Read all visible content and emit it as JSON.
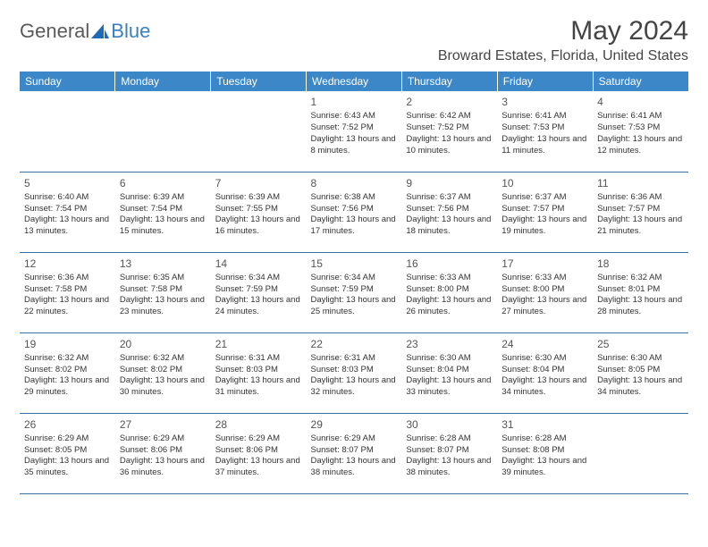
{
  "logo": {
    "text1": "General",
    "text2": "Blue"
  },
  "title": "May 2024",
  "location": "Broward Estates, Florida, United States",
  "colors": {
    "header_bg": "#3b87c8",
    "header_text": "#ffffff",
    "row_border": "#3b6fa0",
    "logo_gray": "#5a5a5a",
    "logo_blue": "#3b7fbf"
  },
  "daynames": [
    "Sunday",
    "Monday",
    "Tuesday",
    "Wednesday",
    "Thursday",
    "Friday",
    "Saturday"
  ],
  "weeks": [
    [
      null,
      null,
      null,
      {
        "n": "1",
        "sr": "6:43 AM",
        "ss": "7:52 PM",
        "dl": "13 hours and 8 minutes."
      },
      {
        "n": "2",
        "sr": "6:42 AM",
        "ss": "7:52 PM",
        "dl": "13 hours and 10 minutes."
      },
      {
        "n": "3",
        "sr": "6:41 AM",
        "ss": "7:53 PM",
        "dl": "13 hours and 11 minutes."
      },
      {
        "n": "4",
        "sr": "6:41 AM",
        "ss": "7:53 PM",
        "dl": "13 hours and 12 minutes."
      }
    ],
    [
      {
        "n": "5",
        "sr": "6:40 AM",
        "ss": "7:54 PM",
        "dl": "13 hours and 13 minutes."
      },
      {
        "n": "6",
        "sr": "6:39 AM",
        "ss": "7:54 PM",
        "dl": "13 hours and 15 minutes."
      },
      {
        "n": "7",
        "sr": "6:39 AM",
        "ss": "7:55 PM",
        "dl": "13 hours and 16 minutes."
      },
      {
        "n": "8",
        "sr": "6:38 AM",
        "ss": "7:56 PM",
        "dl": "13 hours and 17 minutes."
      },
      {
        "n": "9",
        "sr": "6:37 AM",
        "ss": "7:56 PM",
        "dl": "13 hours and 18 minutes."
      },
      {
        "n": "10",
        "sr": "6:37 AM",
        "ss": "7:57 PM",
        "dl": "13 hours and 19 minutes."
      },
      {
        "n": "11",
        "sr": "6:36 AM",
        "ss": "7:57 PM",
        "dl": "13 hours and 21 minutes."
      }
    ],
    [
      {
        "n": "12",
        "sr": "6:36 AM",
        "ss": "7:58 PM",
        "dl": "13 hours and 22 minutes."
      },
      {
        "n": "13",
        "sr": "6:35 AM",
        "ss": "7:58 PM",
        "dl": "13 hours and 23 minutes."
      },
      {
        "n": "14",
        "sr": "6:34 AM",
        "ss": "7:59 PM",
        "dl": "13 hours and 24 minutes."
      },
      {
        "n": "15",
        "sr": "6:34 AM",
        "ss": "7:59 PM",
        "dl": "13 hours and 25 minutes."
      },
      {
        "n": "16",
        "sr": "6:33 AM",
        "ss": "8:00 PM",
        "dl": "13 hours and 26 minutes."
      },
      {
        "n": "17",
        "sr": "6:33 AM",
        "ss": "8:00 PM",
        "dl": "13 hours and 27 minutes."
      },
      {
        "n": "18",
        "sr": "6:32 AM",
        "ss": "8:01 PM",
        "dl": "13 hours and 28 minutes."
      }
    ],
    [
      {
        "n": "19",
        "sr": "6:32 AM",
        "ss": "8:02 PM",
        "dl": "13 hours and 29 minutes."
      },
      {
        "n": "20",
        "sr": "6:32 AM",
        "ss": "8:02 PM",
        "dl": "13 hours and 30 minutes."
      },
      {
        "n": "21",
        "sr": "6:31 AM",
        "ss": "8:03 PM",
        "dl": "13 hours and 31 minutes."
      },
      {
        "n": "22",
        "sr": "6:31 AM",
        "ss": "8:03 PM",
        "dl": "13 hours and 32 minutes."
      },
      {
        "n": "23",
        "sr": "6:30 AM",
        "ss": "8:04 PM",
        "dl": "13 hours and 33 minutes."
      },
      {
        "n": "24",
        "sr": "6:30 AM",
        "ss": "8:04 PM",
        "dl": "13 hours and 34 minutes."
      },
      {
        "n": "25",
        "sr": "6:30 AM",
        "ss": "8:05 PM",
        "dl": "13 hours and 34 minutes."
      }
    ],
    [
      {
        "n": "26",
        "sr": "6:29 AM",
        "ss": "8:05 PM",
        "dl": "13 hours and 35 minutes."
      },
      {
        "n": "27",
        "sr": "6:29 AM",
        "ss": "8:06 PM",
        "dl": "13 hours and 36 minutes."
      },
      {
        "n": "28",
        "sr": "6:29 AM",
        "ss": "8:06 PM",
        "dl": "13 hours and 37 minutes."
      },
      {
        "n": "29",
        "sr": "6:29 AM",
        "ss": "8:07 PM",
        "dl": "13 hours and 38 minutes."
      },
      {
        "n": "30",
        "sr": "6:28 AM",
        "ss": "8:07 PM",
        "dl": "13 hours and 38 minutes."
      },
      {
        "n": "31",
        "sr": "6:28 AM",
        "ss": "8:08 PM",
        "dl": "13 hours and 39 minutes."
      },
      null
    ]
  ],
  "labels": {
    "sunrise": "Sunrise: ",
    "sunset": "Sunset: ",
    "daylight": "Daylight: "
  }
}
